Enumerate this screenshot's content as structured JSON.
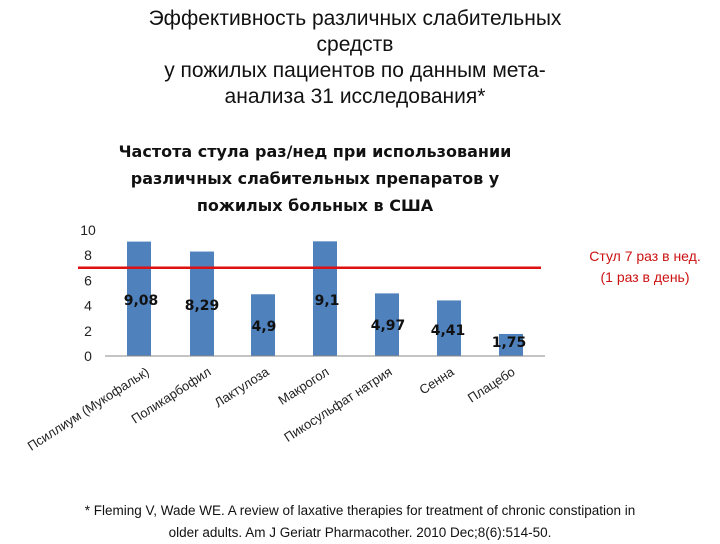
{
  "slide": {
    "title_lines": [
      "Эффективность различных слабительных",
      "средств",
      "у пожилых пациентов по данным мета-",
      "анализа 31 исследования*"
    ]
  },
  "callout": {
    "lines": [
      "Стул 7 раз в нед.",
      "(1 раз в день)"
    ],
    "color": "#cc1111"
  },
  "footnote": {
    "lines": [
      "* Fleming V, Wade WE. A review of laxative therapies for treatment of chronic constipation in",
      "older adults. Am J Geriatr Pharmacother. 2010 Dec;8(6):514-50."
    ]
  },
  "chart_data": {
    "type": "bar",
    "title_lines": [
      "Частота стула раз/нед  при использовании",
      "различных слабительных препаратов у",
      "пожилых больных в США"
    ],
    "categories": [
      "Псиллиум (Мукофальк)",
      "Поликарбофил",
      "Лактулоза",
      "Макрогол",
      "Пикосульфат натрия",
      "Сенна",
      "Плацебо"
    ],
    "values": [
      9.08,
      8.29,
      4.9,
      9.1,
      4.97,
      4.41,
      1.75
    ],
    "value_labels": [
      "9,08",
      "8,29",
      "4,9",
      "9,1",
      "4,97",
      "4,41",
      "1,75"
    ],
    "ylim": [
      0,
      10
    ],
    "yticks": [
      0,
      2,
      4,
      6,
      8,
      10
    ],
    "grid": false,
    "reference_line": {
      "value": 7,
      "color": "#dd1111"
    },
    "bar_color": "#4f81bd",
    "legend": "none"
  }
}
